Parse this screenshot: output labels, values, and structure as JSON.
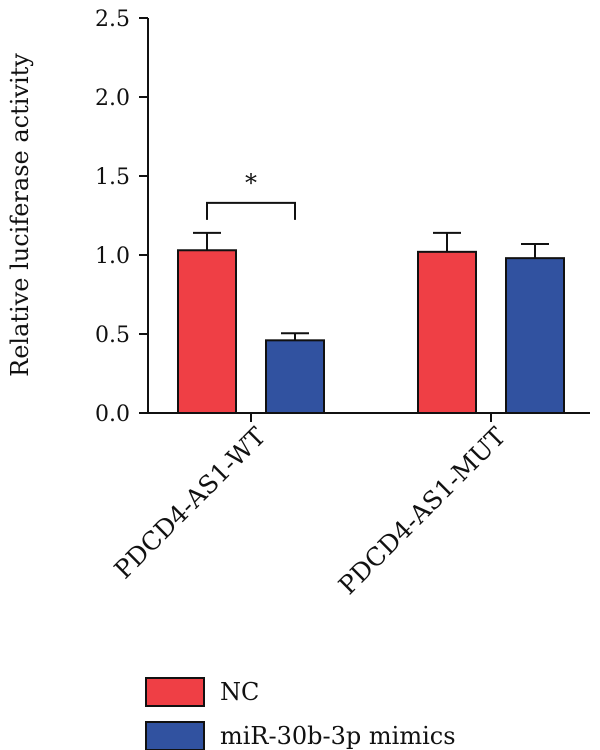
{
  "chart_data": {
    "type": "bar",
    "ylabel": "Relative luciferase activity",
    "ylim": [
      0,
      2.5
    ],
    "yticks": [
      "0.0",
      "0.5",
      "1.0",
      "1.5",
      "2.0",
      "2.5"
    ],
    "categories": [
      "PDCD4-AS1-WT",
      "PDCD4-AS1-MUT"
    ],
    "series": [
      {
        "name": "NC",
        "color": "#ef3f45",
        "values": [
          1.03,
          1.02
        ],
        "errors": [
          0.11,
          0.12
        ]
      },
      {
        "name": "miR-30b-3p mimics",
        "color": "#3152a0",
        "values": [
          0.46,
          0.98
        ],
        "errors": [
          0.045,
          0.09
        ]
      }
    ],
    "annotations": [
      {
        "label": "*",
        "category": 0,
        "from_series": 0,
        "to_series": 1,
        "y": 1.33
      }
    ],
    "legend_position": "bottom-center",
    "grid": false
  }
}
